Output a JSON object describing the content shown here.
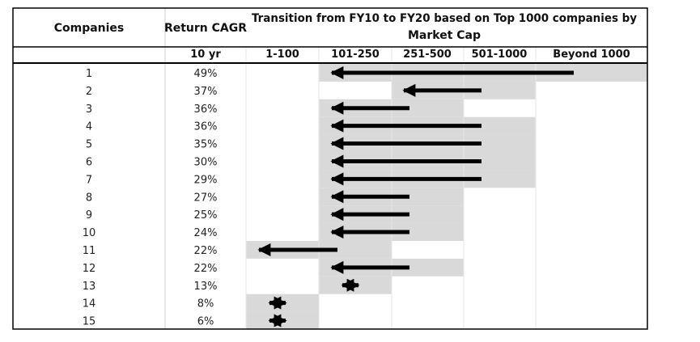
{
  "chart_data": {
    "type": "table",
    "headers": {
      "companies": "Companies",
      "return_cagr": "Return CAGR",
      "transition_line1": "Transition from FY10 to FY20 based on Top 1000 companies by",
      "transition_line2": "Market Cap"
    },
    "subheaders": {
      "cagr_period": "10 yr",
      "buckets": [
        "1-100",
        "101-250",
        "251-500",
        "501-1000",
        "Beyond 1000"
      ]
    },
    "rows": [
      {
        "company": "1",
        "cagr": "49%",
        "from_bucket": "Beyond 1000",
        "to_bucket": "101-250"
      },
      {
        "company": "2",
        "cagr": "37%",
        "from_bucket": "501-1000",
        "to_bucket": "251-500"
      },
      {
        "company": "3",
        "cagr": "36%",
        "from_bucket": "251-500",
        "to_bucket": "101-250"
      },
      {
        "company": "4",
        "cagr": "36%",
        "from_bucket": "501-1000",
        "to_bucket": "101-250"
      },
      {
        "company": "5",
        "cagr": "35%",
        "from_bucket": "501-1000",
        "to_bucket": "101-250"
      },
      {
        "company": "6",
        "cagr": "30%",
        "from_bucket": "501-1000",
        "to_bucket": "101-250"
      },
      {
        "company": "7",
        "cagr": "29%",
        "from_bucket": "501-1000",
        "to_bucket": "101-250"
      },
      {
        "company": "8",
        "cagr": "27%",
        "from_bucket": "251-500",
        "to_bucket": "101-250"
      },
      {
        "company": "9",
        "cagr": "25%",
        "from_bucket": "251-500",
        "to_bucket": "101-250"
      },
      {
        "company": "10",
        "cagr": "24%",
        "from_bucket": "251-500",
        "to_bucket": "101-250"
      },
      {
        "company": "11",
        "cagr": "22%",
        "from_bucket": "101-250",
        "to_bucket": "1-100"
      },
      {
        "company": "12",
        "cagr": "22%",
        "from_bucket": "251-500",
        "to_bucket": "101-250"
      },
      {
        "company": "13",
        "cagr": "13%",
        "from_bucket": "101-250",
        "to_bucket": "101-250"
      },
      {
        "company": "14",
        "cagr": "8%",
        "from_bucket": "1-100",
        "to_bucket": "1-100"
      },
      {
        "company": "15",
        "cagr": "6%",
        "from_bucket": "1-100",
        "to_bucket": "1-100"
      }
    ],
    "colors": {
      "highlight": "#d9d9d9",
      "arrow": "#000000",
      "grid": "#e6e6e6",
      "border": "#000000"
    }
  },
  "footnote": ""
}
